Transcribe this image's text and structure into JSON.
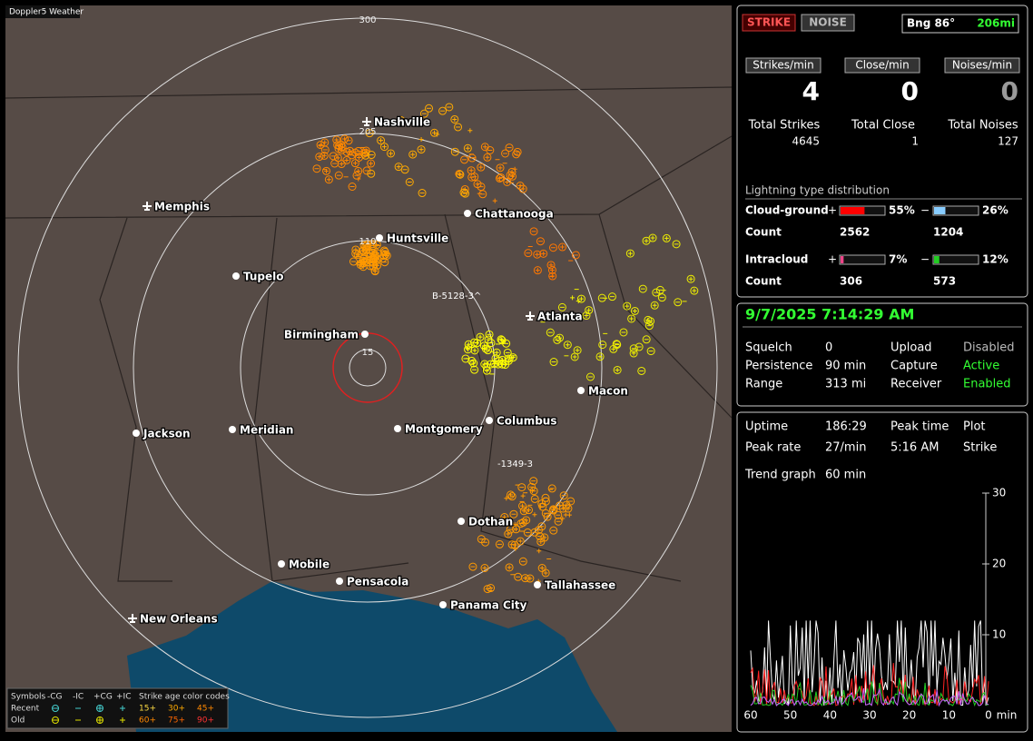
{
  "map": {
    "title": "Doppler5 Weather",
    "ring_labels": [
      "300",
      "205",
      "110",
      "15"
    ],
    "cities": [
      "Nashville",
      "Memphis",
      "Chattanooga",
      "Huntsville",
      "Tupelo",
      "Atlanta",
      "Birmingham",
      "Macon",
      "Jackson",
      "Meridian",
      "Montgomery",
      "Columbus",
      "Dothan",
      "Mobile",
      "Pensacola",
      "Tallahassee",
      "Panama City",
      "New Orleans"
    ],
    "storm_labels": [
      "B-5128-3^",
      "-1349-3"
    ],
    "legend": {
      "symbols": "Symbols",
      "headers": [
        "-CG",
        "-IC",
        "+CG",
        "+IC"
      ],
      "age_title": "Strike age color codes",
      "rows": [
        {
          "label": "Recent",
          "ages": [
            "15+",
            "30+",
            "45+"
          ]
        },
        {
          "label": "Old",
          "ages": [
            "60+",
            "75+",
            "90+"
          ]
        }
      ]
    }
  },
  "status": {
    "strike": "STRIKE",
    "noise": "NOISE",
    "bearing": "Bng 86°",
    "distance": "206mi",
    "rate_labels": [
      "Strikes/min",
      "Close/min",
      "Noises/min"
    ],
    "rates": [
      4,
      0,
      0
    ],
    "total_labels": [
      "Total Strikes",
      "Total Close",
      "Total Noises"
    ],
    "totals": [
      4645,
      1,
      127
    ],
    "distribution": {
      "title": "Lightning type distribution",
      "plus_sign": "+",
      "minus_sign": "−",
      "count_label": "Count",
      "rows": [
        {
          "name": "Cloud-ground",
          "plus": {
            "value": 55,
            "label": "55%"
          },
          "minus": {
            "value": 26,
            "label": "26%"
          },
          "plus_count": 2562,
          "minus_count": 1204
        },
        {
          "name": "Intracloud",
          "plus": {
            "value": 7,
            "label": "7%"
          },
          "minus": {
            "value": 12,
            "label": "12%"
          },
          "plus_count": 306,
          "minus_count": 573
        }
      ]
    }
  },
  "time": {
    "datetime": "9/7/2025 7:14:29 AM",
    "rows": [
      [
        "Squelch",
        "0",
        "Upload",
        "Disabled"
      ],
      [
        "Persistence",
        "90 min",
        "Capture",
        "Active"
      ],
      [
        "Range",
        "313 mi",
        "Receiver",
        "Enabled"
      ]
    ]
  },
  "stats": {
    "rows": [
      [
        "Uptime",
        "186:29",
        "Peak time",
        "Plot"
      ],
      [
        "Peak rate",
        "27/min",
        "5:16 AM",
        "Strike"
      ],
      [
        "Trend graph",
        "60 min"
      ]
    ],
    "trend": {
      "ylim": [
        0,
        30
      ],
      "yticks": [
        10,
        20,
        30
      ],
      "xlim": [
        60,
        0
      ],
      "xticks": [
        60,
        50,
        40,
        30,
        20,
        10,
        0
      ],
      "x_unit": "min"
    }
  }
}
